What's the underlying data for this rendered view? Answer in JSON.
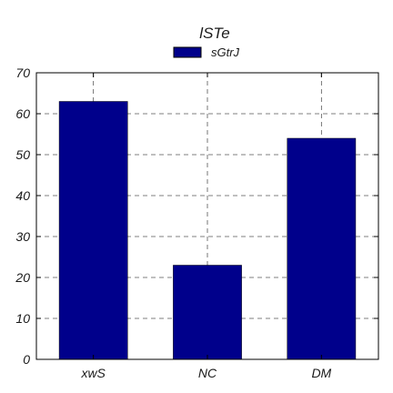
{
  "chart_data": {
    "type": "bar",
    "title": "lSTe",
    "xlabel": "",
    "ylabel": "",
    "categories": [
      "xwS",
      "NC",
      "DM"
    ],
    "series": [
      {
        "name": "sGtrJ",
        "values": [
          63,
          23,
          54
        ],
        "color": "#00008b"
      }
    ],
    "ylim": [
      0,
      70
    ],
    "yticks": [
      0,
      10,
      20,
      30,
      40,
      50,
      60,
      70
    ],
    "grid": true,
    "grid_style": "dashed",
    "legend_position": "top-center"
  }
}
